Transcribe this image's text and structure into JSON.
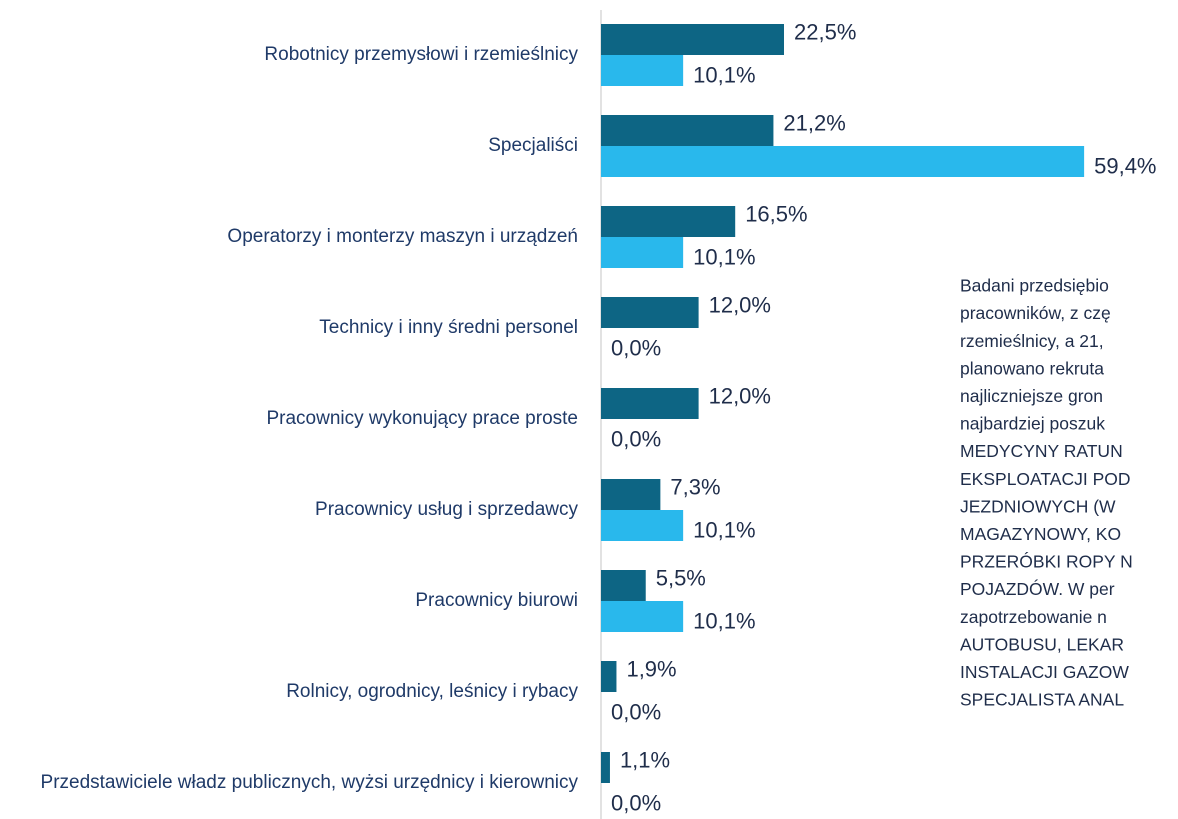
{
  "chart_data": {
    "type": "bar",
    "orientation": "horizontal",
    "categories": [
      "Robotnicy przemysłowi i rzemieślnicy",
      "Specjaliści",
      "Operatorzy i monterzy maszyn i urządzeń",
      "Technicy i inny średni personel",
      "Pracownicy wykonujący prace proste",
      "Pracownicy usług i sprzedawcy",
      "Pracownicy biurowi",
      "Rolnicy, ogrodnicy, leśnicy i rybacy",
      "Przedstawiciele władz publicznych, wyżsi urzędnicy i kierownicy"
    ],
    "series": [
      {
        "color": "#0d6584",
        "values": [
          22.5,
          21.2,
          16.5,
          12.0,
          12.0,
          7.3,
          5.5,
          1.9,
          1.1
        ],
        "value_labels": [
          "22,5%",
          "21,2%",
          "16,5%",
          "12,0%",
          "12,0%",
          "7,3%",
          "5,5%",
          "1,9%",
          "1,1%"
        ]
      },
      {
        "color": "#29b8ec",
        "values": [
          10.1,
          59.4,
          10.1,
          0.0,
          0.0,
          10.1,
          10.1,
          0.0,
          0.0
        ],
        "value_labels": [
          "10,1%",
          "59,4%",
          "10,1%",
          "0,0%",
          "0,0%",
          "10,1%",
          "10,1%",
          "0,0%",
          "0,0%"
        ]
      }
    ],
    "xlim": [
      0,
      60
    ],
    "annotation_lines": [
      "Badani przedsiębio",
      "pracowników, z czę",
      "rzemieślnicy, a 21,",
      "planowano rekruta",
      "najliczniejsze gron",
      "najbardziej poszuk",
      "MEDYCYNY RATUN",
      "EKSPLOATACJI POD",
      "JEZDNIOWYCH (W",
      "MAGAZYNOWY, KO",
      "PRZERÓBKI ROPY N",
      "POJAZDÓW. W per",
      "zapotrzebowanie n",
      "AUTOBUSU, LEKAR",
      "INSTALACJI GAZOW",
      "SPECJALISTA ANAL"
    ]
  }
}
